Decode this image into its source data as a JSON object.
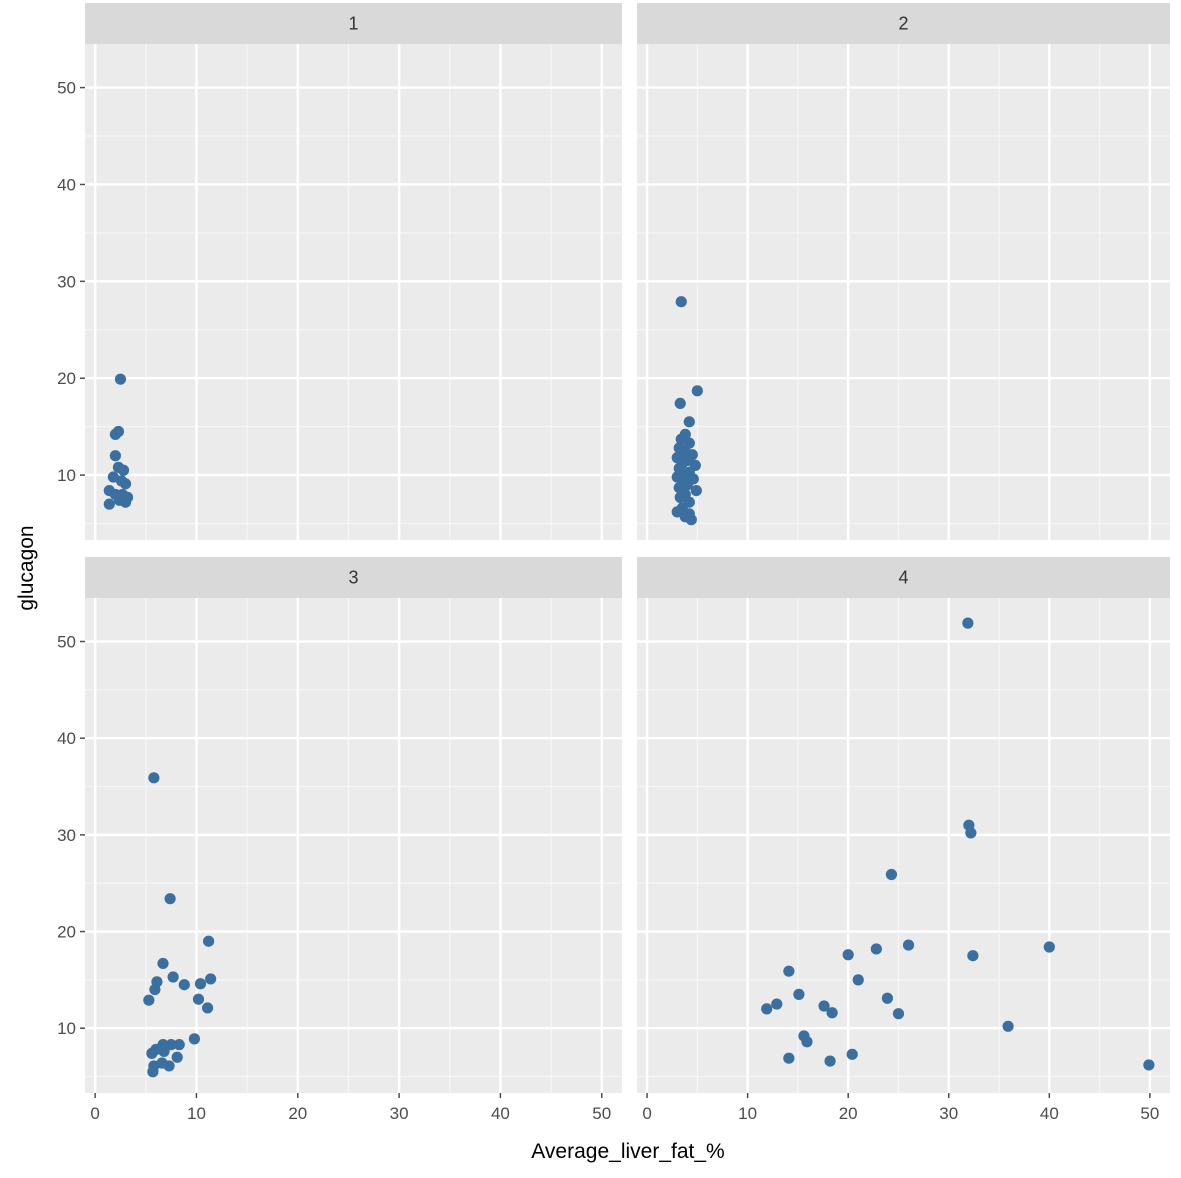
{
  "chart_data": {
    "type": "scatter",
    "layout": "facet_wrap 2x2",
    "xlabel": "Average_liver_fat_%",
    "ylabel": "glucagon",
    "x_ticks": [
      0,
      10,
      20,
      30,
      40,
      50
    ],
    "y_ticks": [
      10,
      20,
      30,
      40,
      50
    ],
    "xlim": [
      -1,
      52
    ],
    "ylim": [
      3.3,
      54.5
    ],
    "grid": true,
    "legend": "none",
    "point_color": "#3a6f9f",
    "panel_background": "#ebebeb",
    "strip_background": "#d9d9d9",
    "facets": [
      {
        "label": "1",
        "points": [
          [
            2.5,
            19.9
          ],
          [
            2.3,
            14.5
          ],
          [
            2.0,
            14.2
          ],
          [
            2.0,
            12.0
          ],
          [
            2.3,
            10.8
          ],
          [
            2.8,
            10.5
          ],
          [
            1.8,
            9.8
          ],
          [
            2.6,
            9.4
          ],
          [
            3.0,
            9.1
          ],
          [
            1.4,
            8.4
          ],
          [
            2.0,
            8.0
          ],
          [
            2.7,
            8.0
          ],
          [
            3.2,
            7.7
          ],
          [
            2.4,
            7.4
          ],
          [
            1.4,
            7.0
          ],
          [
            3.0,
            7.2
          ]
        ]
      },
      {
        "label": "2",
        "points": [
          [
            3.4,
            27.9
          ],
          [
            5.0,
            18.7
          ],
          [
            3.3,
            17.4
          ],
          [
            4.2,
            15.5
          ],
          [
            3.8,
            14.2
          ],
          [
            3.4,
            13.7
          ],
          [
            4.2,
            13.3
          ],
          [
            3.2,
            12.8
          ],
          [
            3.8,
            12.4
          ],
          [
            4.5,
            12.1
          ],
          [
            3.0,
            11.8
          ],
          [
            4.0,
            11.5
          ],
          [
            3.5,
            11.2
          ],
          [
            4.8,
            11.0
          ],
          [
            3.2,
            10.7
          ],
          [
            4.2,
            10.3
          ],
          [
            3.7,
            10.0
          ],
          [
            3.0,
            9.8
          ],
          [
            4.6,
            9.6
          ],
          [
            3.5,
            9.3
          ],
          [
            4.0,
            9.0
          ],
          [
            3.2,
            8.7
          ],
          [
            4.9,
            8.4
          ],
          [
            3.8,
            8.0
          ],
          [
            3.3,
            7.7
          ],
          [
            4.2,
            7.2
          ],
          [
            3.5,
            6.6
          ],
          [
            3.0,
            6.2
          ],
          [
            4.2,
            6.0
          ],
          [
            3.8,
            5.7
          ],
          [
            4.4,
            5.4
          ]
        ]
      },
      {
        "label": "3",
        "points": [
          [
            5.8,
            35.9
          ],
          [
            7.4,
            23.4
          ],
          [
            11.2,
            19.0
          ],
          [
            6.7,
            16.7
          ],
          [
            7.7,
            15.3
          ],
          [
            11.4,
            15.1
          ],
          [
            6.1,
            14.8
          ],
          [
            10.4,
            14.6
          ],
          [
            8.8,
            14.5
          ],
          [
            5.9,
            14.0
          ],
          [
            5.3,
            12.9
          ],
          [
            10.2,
            13.0
          ],
          [
            11.1,
            12.1
          ],
          [
            9.8,
            8.9
          ],
          [
            6.7,
            8.3
          ],
          [
            7.5,
            8.3
          ],
          [
            8.3,
            8.3
          ],
          [
            6.0,
            7.8
          ],
          [
            6.8,
            7.6
          ],
          [
            5.6,
            7.4
          ],
          [
            8.1,
            7.0
          ],
          [
            6.6,
            6.4
          ],
          [
            5.8,
            6.1
          ],
          [
            7.3,
            6.1
          ],
          [
            5.7,
            5.5
          ]
        ]
      },
      {
        "label": "4",
        "points": [
          [
            31.9,
            51.9
          ],
          [
            32.0,
            31.0
          ],
          [
            32.2,
            30.2
          ],
          [
            24.3,
            25.9
          ],
          [
            26.0,
            18.6
          ],
          [
            40.0,
            18.4
          ],
          [
            22.8,
            18.2
          ],
          [
            20.0,
            17.6
          ],
          [
            32.4,
            17.5
          ],
          [
            14.1,
            15.9
          ],
          [
            21.0,
            15.0
          ],
          [
            15.1,
            13.5
          ],
          [
            23.9,
            13.1
          ],
          [
            12.9,
            12.5
          ],
          [
            17.6,
            12.3
          ],
          [
            11.9,
            12.0
          ],
          [
            18.4,
            11.6
          ],
          [
            25.0,
            11.5
          ],
          [
            35.9,
            10.2
          ],
          [
            15.6,
            9.2
          ],
          [
            15.9,
            8.6
          ],
          [
            20.4,
            7.3
          ],
          [
            14.1,
            6.9
          ],
          [
            18.2,
            6.6
          ],
          [
            49.9,
            6.2
          ]
        ]
      }
    ]
  }
}
